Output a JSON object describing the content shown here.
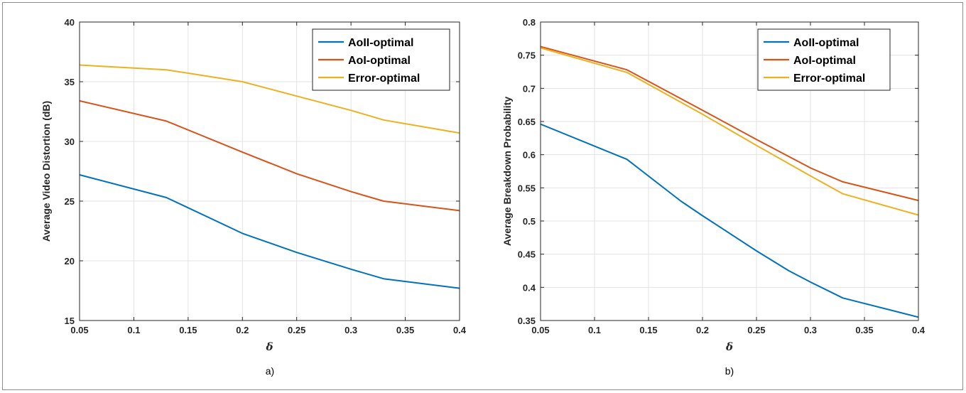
{
  "chart_data": [
    {
      "type": "line",
      "xlabel": "δ",
      "ylabel": "Average Video Distortion (dB)",
      "caption": "a)",
      "xlim": [
        0.05,
        0.4
      ],
      "ylim": [
        15,
        40
      ],
      "xticks": [
        "0.05",
        "0.1",
        "0.15",
        "0.2",
        "0.25",
        "0.3",
        "0.35",
        "0.4"
      ],
      "yticks": [
        "15",
        "20",
        "25",
        "30",
        "35",
        "40"
      ],
      "grid": true,
      "legend_position": "top-right",
      "series": [
        {
          "name": "AoII-optimal",
          "color": "#0072BD",
          "x": [
            0.05,
            0.13,
            0.2,
            0.25,
            0.3,
            0.33,
            0.4
          ],
          "y": [
            27.2,
            25.3,
            22.3,
            20.7,
            19.3,
            18.5,
            17.7
          ]
        },
        {
          "name": "AoI-optimal",
          "color": "#D95319",
          "x": [
            0.05,
            0.13,
            0.2,
            0.25,
            0.3,
            0.33,
            0.4
          ],
          "y": [
            33.4,
            31.7,
            29.1,
            27.3,
            25.8,
            25.0,
            24.2
          ]
        },
        {
          "name": "Error-optimal",
          "color": "#EDB120",
          "x": [
            0.05,
            0.13,
            0.2,
            0.25,
            0.3,
            0.33,
            0.4
          ],
          "y": [
            36.4,
            36.0,
            35.0,
            33.8,
            32.6,
            31.8,
            30.7
          ]
        }
      ]
    },
    {
      "type": "line",
      "xlabel": "δ",
      "ylabel": "Average Breakdown Probability",
      "caption": "b)",
      "xlim": [
        0.05,
        0.4
      ],
      "ylim": [
        0.35,
        0.8
      ],
      "xticks": [
        "0.05",
        "0.1",
        "0.15",
        "0.2",
        "0.25",
        "0.3",
        "0.35",
        "0.4"
      ],
      "yticks": [
        "0.35",
        "0.4",
        "0.45",
        "0.5",
        "0.55",
        "0.6",
        "0.65",
        "0.7",
        "0.75",
        "0.8"
      ],
      "grid": true,
      "legend_position": "top-right",
      "series": [
        {
          "name": "AoII-optimal",
          "color": "#0072BD",
          "x": [
            0.05,
            0.13,
            0.18,
            0.2,
            0.25,
            0.28,
            0.3,
            0.33,
            0.4
          ],
          "y": [
            0.646,
            0.593,
            0.53,
            0.508,
            0.455,
            0.425,
            0.408,
            0.384,
            0.355
          ]
        },
        {
          "name": "AoI-optimal",
          "color": "#D95319",
          "x": [
            0.05,
            0.13,
            0.2,
            0.25,
            0.3,
            0.33,
            0.4
          ],
          "y": [
            0.763,
            0.728,
            0.667,
            0.623,
            0.58,
            0.559,
            0.531
          ]
        },
        {
          "name": "Error-optimal",
          "color": "#EDB120",
          "x": [
            0.05,
            0.13,
            0.2,
            0.25,
            0.3,
            0.33,
            0.4
          ],
          "y": [
            0.761,
            0.724,
            0.661,
            0.614,
            0.568,
            0.541,
            0.509
          ]
        }
      ]
    }
  ]
}
